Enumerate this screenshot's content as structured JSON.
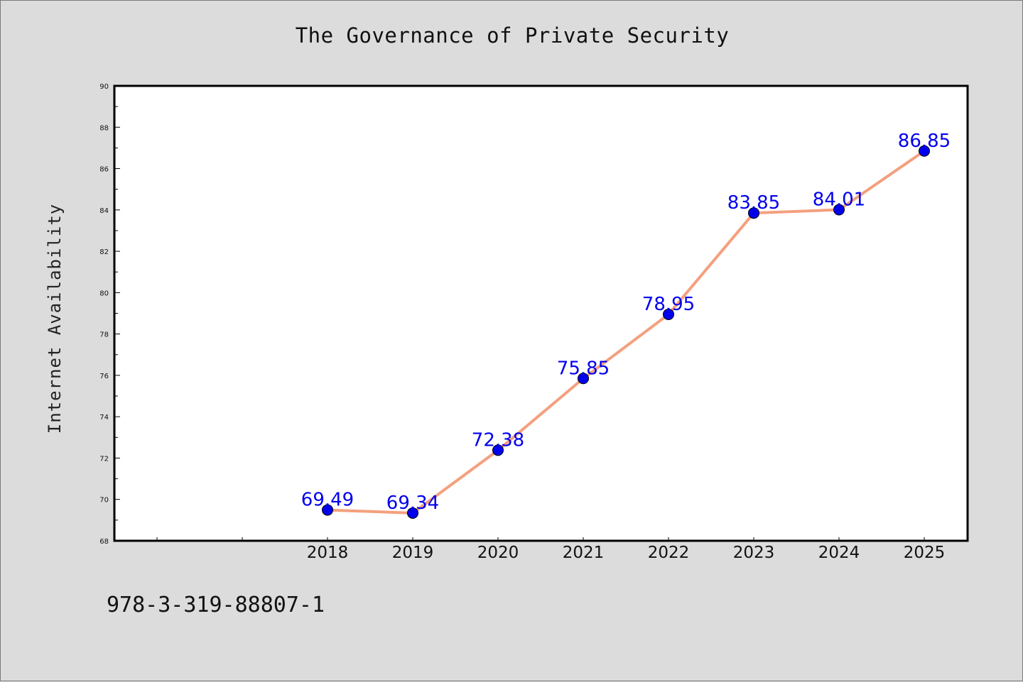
{
  "chart_data": {
    "type": "line",
    "title": "The Governance of Private Security",
    "xlabel": "",
    "ylabel": "Internet Availability",
    "x": [
      "2018",
      "2019",
      "2020",
      "2021",
      "2022",
      "2023",
      "2024",
      "2025"
    ],
    "values": [
      69.49,
      69.34,
      72.38,
      75.85,
      78.95,
      83.85,
      84.01,
      86.85
    ],
    "data_labels": [
      "69.49",
      "69.34",
      "72.38",
      "75.85",
      "78.95",
      "83.85",
      "84.01",
      "86.85"
    ],
    "ylim": [
      68,
      90
    ],
    "yticks": [
      "68",
      "70",
      "72",
      "74",
      "76",
      "78",
      "80",
      "82",
      "84",
      "86",
      "88",
      "90"
    ],
    "grid": false,
    "colors": {
      "line": "#f4a07e",
      "marker": "#0000ee",
      "label": "#0000ee"
    }
  },
  "footer": {
    "isbn": "978-3-319-88807-1"
  }
}
